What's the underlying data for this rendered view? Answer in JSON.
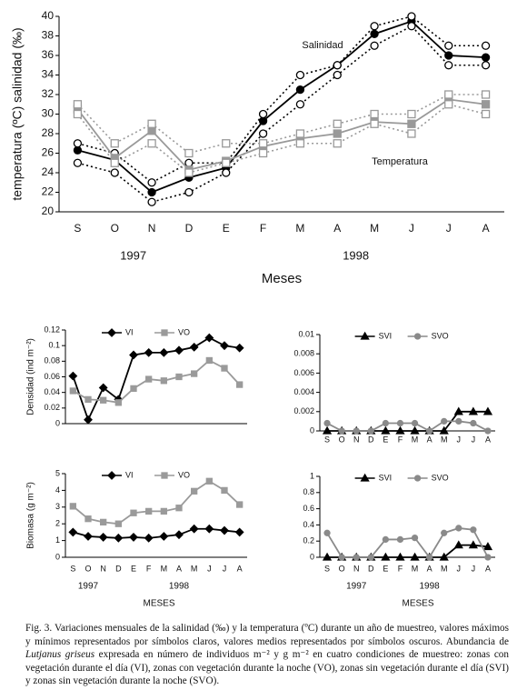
{
  "chart_data": [
    {
      "type": "line",
      "y_label": "temperatura (ºC) salinidad (‰)",
      "x_label": "Meses",
      "categories": [
        "S",
        "O",
        "N",
        "D",
        "E",
        "F",
        "M",
        "A",
        "M",
        "J",
        "J",
        "A"
      ],
      "years": [
        "1997",
        "1998"
      ],
      "annotations": [
        "Salinidad",
        "Temperatura"
      ],
      "ylim": [
        20,
        40
      ],
      "yticks": [
        20,
        22,
        24,
        26,
        28,
        30,
        32,
        34,
        36,
        38,
        40
      ],
      "legend": false,
      "series": [
        {
          "color": "#000000",
          "dashed": false,
          "marker": "circle",
          "filled": true,
          "values": [
            26.3,
            25.3,
            22,
            23.5,
            24.5,
            29.3,
            32.5,
            35,
            38.2,
            39.5,
            36,
            35.8
          ]
        },
        {
          "color": "#000000",
          "dashed": true,
          "marker": "circle",
          "filled": false,
          "values": [
            27,
            26,
            23,
            25,
            25,
            30,
            34,
            35,
            39,
            40,
            37,
            37
          ]
        },
        {
          "color": "#000000",
          "dashed": true,
          "marker": "circle",
          "filled": false,
          "values": [
            25,
            24,
            21,
            22,
            24,
            28,
            31,
            34,
            37,
            39,
            35,
            35
          ]
        },
        {
          "color": "#999999",
          "dashed": false,
          "marker": "square",
          "filled": true,
          "values": [
            30.5,
            25.5,
            28.3,
            24.3,
            25.2,
            26.7,
            27.5,
            28,
            29.2,
            29,
            31.5,
            31
          ]
        },
        {
          "color": "#999999",
          "dashed": true,
          "marker": "square",
          "filled": false,
          "values": [
            31,
            27,
            29,
            26,
            27,
            27,
            28,
            29,
            30,
            30,
            32,
            32
          ]
        },
        {
          "color": "#999999",
          "dashed": true,
          "marker": "square",
          "filled": false,
          "values": [
            30,
            25,
            27,
            24,
            25,
            26,
            27,
            27,
            29,
            28,
            31,
            30
          ]
        }
      ]
    },
    {
      "type": "line",
      "y_label": "Densidad (ind m⁻²)",
      "points": 12,
      "ylim": [
        0,
        0.12
      ],
      "yticks": [
        0,
        0.02,
        0.04,
        0.06,
        0.08,
        0.1,
        0.12
      ],
      "legend": "top",
      "series": [
        {
          "name": "VI",
          "color": "#000000",
          "dashed": false,
          "marker": "diamond",
          "filled": true,
          "values": [
            0.061,
            0.005,
            0.046,
            0.031,
            0.088,
            0.091,
            0.091,
            0.094,
            0.098,
            0.11,
            0.1,
            0.097
          ]
        },
        {
          "name": "VO",
          "color": "#9a9a9a",
          "dashed": false,
          "marker": "square",
          "filled": true,
          "values": [
            0.042,
            0.031,
            0.03,
            0.027,
            0.045,
            0.057,
            0.055,
            0.06,
            0.064,
            0.081,
            0.071,
            0.05
          ]
        }
      ]
    },
    {
      "type": "line",
      "categories": [
        "S",
        "O",
        "N",
        "D",
        "E",
        "F",
        "M",
        "A",
        "M",
        "J",
        "J",
        "A"
      ],
      "ylim": [
        0,
        0.01
      ],
      "yticks": [
        0,
        0.002,
        0.004,
        0.006,
        0.008,
        0.01
      ],
      "legend": "top",
      "series": [
        {
          "name": "SVI",
          "color": "#000000",
          "dashed": false,
          "marker": "triangle",
          "filled": true,
          "values": [
            0,
            0,
            0,
            0,
            0,
            0,
            0,
            0,
            0,
            0.002,
            0.002,
            0.002
          ]
        },
        {
          "name": "SVO",
          "color": "#8a8a8a",
          "dashed": false,
          "marker": "circle",
          "filled": true,
          "values": [
            0.0008,
            0,
            0,
            0,
            0.0008,
            0.0008,
            0.0008,
            0,
            0.001,
            0.001,
            0.0008,
            0
          ]
        }
      ]
    },
    {
      "type": "line",
      "y_label": "Biomasa (g m⁻²)",
      "x_label": "MESES",
      "categories": [
        "S",
        "O",
        "N",
        "D",
        "E",
        "F",
        "M",
        "A",
        "M",
        "J",
        "J",
        "A"
      ],
      "years": [
        "1997",
        "1998"
      ],
      "ylim": [
        0,
        5
      ],
      "yticks": [
        0,
        1,
        2,
        3,
        4,
        5
      ],
      "legend": "top",
      "series": [
        {
          "name": "VI",
          "color": "#000000",
          "dashed": false,
          "marker": "diamond",
          "filled": true,
          "values": [
            1.5,
            1.25,
            1.2,
            1.15,
            1.2,
            1.15,
            1.25,
            1.35,
            1.7,
            1.7,
            1.6,
            1.5
          ]
        },
        {
          "name": "VO",
          "color": "#9a9a9a",
          "dashed": false,
          "marker": "square",
          "filled": true,
          "values": [
            3.05,
            2.3,
            2.1,
            2,
            2.65,
            2.75,
            2.75,
            2.95,
            3.95,
            4.55,
            4,
            3.15
          ]
        }
      ]
    },
    {
      "type": "line",
      "x_label": "MESES",
      "categories": [
        "S",
        "O",
        "N",
        "D",
        "E",
        "F",
        "M",
        "A",
        "M",
        "J",
        "J",
        "A"
      ],
      "years": [
        "1997",
        "1998"
      ],
      "ylim": [
        0,
        1
      ],
      "yticks": [
        0,
        0.2,
        0.4,
        0.6,
        0.8,
        1
      ],
      "legend": "top",
      "series": [
        {
          "name": "SVI",
          "color": "#000000",
          "dashed": false,
          "marker": "triangle",
          "filled": true,
          "values": [
            0,
            0,
            0,
            0,
            0,
            0,
            0,
            0,
            0,
            0.15,
            0.15,
            0.13
          ]
        },
        {
          "name": "SVO",
          "color": "#8a8a8a",
          "dashed": false,
          "marker": "circle",
          "filled": true,
          "values": [
            0.3,
            0,
            0,
            0,
            0.22,
            0.22,
            0.24,
            0,
            0.3,
            0.36,
            0.34,
            0
          ]
        }
      ]
    }
  ],
  "caption": {
    "before": "Fig. 3. Variaciones mensuales de la salinidad (‰) y la temperatura (ºC) durante un año de muestreo, valores máximos y mínimos representados por símbolos claros, valores medios representados por símbolos oscuros. Abundancia de ",
    "italic": "Lutjanus griseus",
    "after": " expresada en número de individuos m⁻² y g m⁻² en cuatro condiciones de muestreo: zonas con vegetación durante el día (VI), zonas con vegetación durante la noche (VO), zonas sin vegetación durante el día (SVI) y zonas sin vegetación durante la noche (SVO)."
  }
}
